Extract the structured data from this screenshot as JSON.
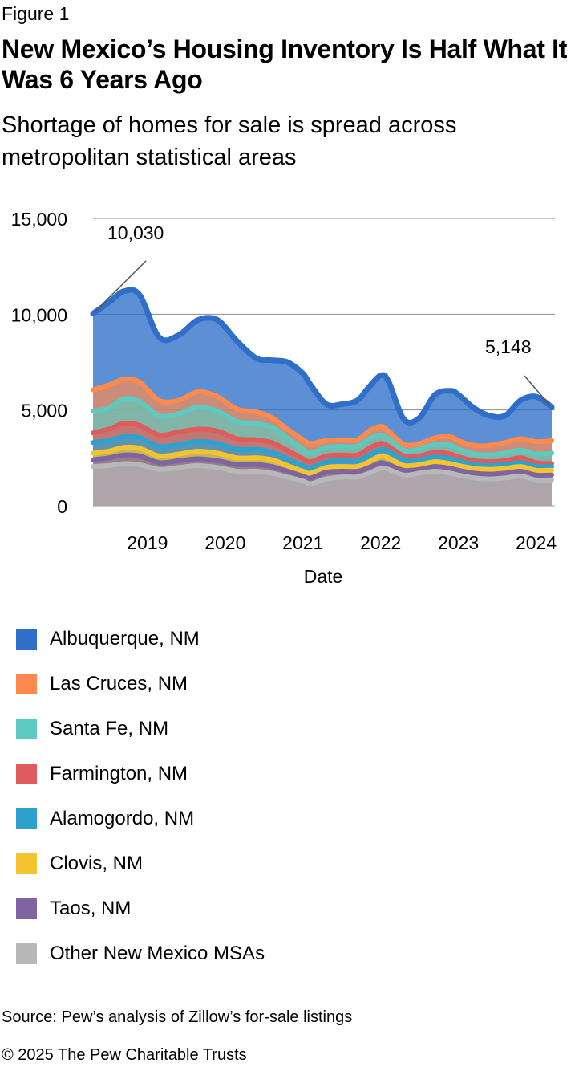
{
  "figure_label": "Figure 1",
  "source": "Source: Pew’s analysis of Zillow’s for-sale listings",
  "copyright": "© 2025 The Pew Charitable Trusts",
  "chart_data": {
    "type": "area",
    "stacked": true,
    "title": "New Mexico’s Housing Inventory Is Half What It Was 6 Years Ago",
    "subtitle": "Shortage of homes for sale is spread across metropolitan statistical areas",
    "xlabel": "Date",
    "ylabel": "",
    "ylim": [
      0,
      15000
    ],
    "yticks": [
      0,
      5000,
      10000,
      15000
    ],
    "ytick_labels": [
      "0",
      "5,000",
      "10,000",
      "15,000"
    ],
    "xticks": [
      "2019",
      "2020",
      "2021",
      "2022",
      "2023",
      "2024"
    ],
    "xtick_positions": [
      2019,
      2020,
      2021,
      2022,
      2023,
      2024
    ],
    "grid": true,
    "legend_position": "bottom",
    "x": [
      2018.3,
      2018.5,
      2018.7,
      2018.9,
      2019.15,
      2019.4,
      2019.65,
      2019.9,
      2020.15,
      2020.4,
      2020.6,
      2020.8,
      2021.0,
      2021.1,
      2021.3,
      2021.5,
      2021.7,
      2021.85,
      2022.0,
      2022.1,
      2022.3,
      2022.5,
      2022.7,
      2022.9,
      2023.0,
      2023.2,
      2023.4,
      2023.6,
      2023.8,
      2024.0,
      2024.2
    ],
    "annotations": [
      {
        "text": "10,030",
        "x": 2018.3,
        "y": 10030
      },
      {
        "text": "5,148",
        "x": 2024.2,
        "y": 5148
      }
    ],
    "series": [
      {
        "name": "Other New Mexico MSAs",
        "color": "#b8b8b8",
        "values": [
          2050,
          2100,
          2200,
          2150,
          1900,
          2000,
          2100,
          2000,
          1800,
          1800,
          1700,
          1500,
          1300,
          1150,
          1400,
          1500,
          1500,
          1700,
          1950,
          1900,
          1600,
          1700,
          1800,
          1700,
          1600,
          1450,
          1400,
          1450,
          1550,
          1350,
          1350
        ]
      },
      {
        "name": "Taos, NM",
        "color": "#8064a2",
        "values": [
          2400,
          2500,
          2650,
          2600,
          2250,
          2350,
          2450,
          2350,
          2150,
          2150,
          2050,
          1800,
          1550,
          1450,
          1750,
          1800,
          1800,
          2000,
          2250,
          2150,
          1850,
          1900,
          2050,
          1950,
          1850,
          1700,
          1650,
          1700,
          1800,
          1600,
          1600
        ]
      },
      {
        "name": "Clovis, NM",
        "color": "#f4c430",
        "values": [
          2750,
          2850,
          3050,
          3000,
          2600,
          2700,
          2850,
          2750,
          2500,
          2500,
          2400,
          2100,
          1800,
          1700,
          2000,
          2050,
          2050,
          2300,
          2600,
          2500,
          2100,
          2150,
          2300,
          2200,
          2100,
          1950,
          1900,
          1950,
          2050,
          1850,
          1850
        ]
      },
      {
        "name": "Alamogordo, NM",
        "color": "#2ea2cf",
        "values": [
          3300,
          3400,
          3600,
          3550,
          3100,
          3200,
          3350,
          3250,
          2950,
          2950,
          2800,
          2450,
          2100,
          2000,
          2300,
          2350,
          2350,
          2650,
          2950,
          2850,
          2400,
          2400,
          2550,
          2450,
          2350,
          2150,
          2100,
          2150,
          2250,
          2050,
          2050
        ]
      },
      {
        "name": "Farmington, NM",
        "color": "#e05c5c",
        "values": [
          3800,
          4000,
          4300,
          4200,
          3700,
          3850,
          4000,
          3900,
          3500,
          3450,
          3300,
          2900,
          2450,
          2300,
          2600,
          2650,
          2650,
          3000,
          3250,
          3100,
          2600,
          2600,
          2800,
          2700,
          2550,
          2350,
          2300,
          2350,
          2500,
          2250,
          2200
        ]
      },
      {
        "name": "Santa Fe, NM",
        "color": "#5ec9be",
        "values": [
          4950,
          5100,
          5600,
          5450,
          4700,
          4800,
          5150,
          4950,
          4400,
          4300,
          4100,
          3550,
          2950,
          2750,
          3050,
          3100,
          3100,
          3500,
          3700,
          3500,
          2900,
          2950,
          3200,
          3150,
          2950,
          2700,
          2650,
          2750,
          2900,
          2700,
          2750
        ]
      },
      {
        "name": "Las Cruces, NM",
        "color": "#ff8a4d",
        "values": [
          6050,
          6300,
          6600,
          6450,
          5500,
          5500,
          5950,
          5700,
          5050,
          4900,
          4600,
          4000,
          3450,
          3250,
          3400,
          3450,
          3450,
          3900,
          4150,
          3900,
          3200,
          3250,
          3550,
          3600,
          3400,
          3150,
          3150,
          3300,
          3500,
          3350,
          3400
        ]
      },
      {
        "name": "Albuquerque, NM",
        "color": "#2f6fc9",
        "values": [
          10030,
          10600,
          11200,
          11000,
          8800,
          8900,
          9700,
          9700,
          8600,
          7700,
          7600,
          7500,
          6900,
          6300,
          5300,
          5300,
          5500,
          6200,
          6800,
          6500,
          4500,
          4600,
          5800,
          6000,
          5800,
          5100,
          4700,
          4700,
          5500,
          5700,
          5148
        ]
      }
    ]
  }
}
